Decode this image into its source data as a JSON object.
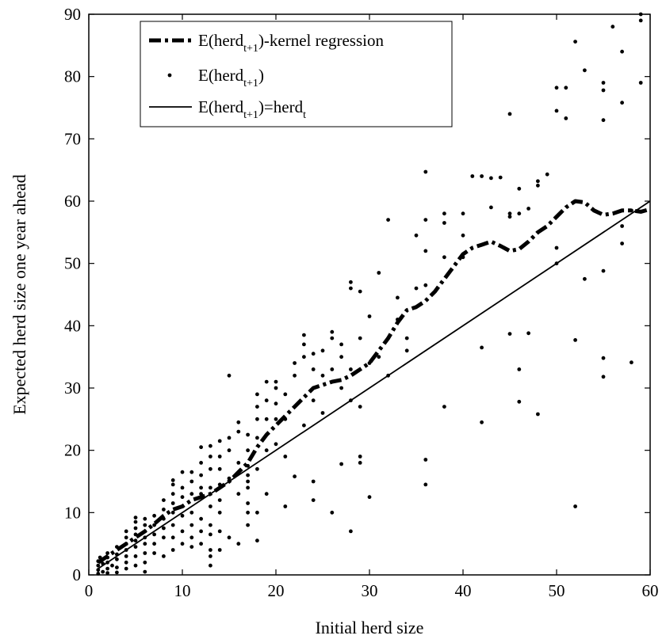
{
  "chart_data": {
    "type": "scatter",
    "xlabel": "Initial herd size",
    "ylabel": "Expected herd size one year ahead",
    "xlim": [
      0,
      60
    ],
    "ylim": [
      0,
      90
    ],
    "xticks": [
      0,
      10,
      20,
      30,
      40,
      50,
      60
    ],
    "yticks": [
      0,
      10,
      20,
      30,
      40,
      50,
      60,
      70,
      80,
      90
    ],
    "grid": false,
    "legend_position": "top-left",
    "legend": [
      {
        "base": "E(herd",
        "sub": "t+1",
        "tail": ")-kernel regression",
        "tail_sub": "",
        "style": "dash-dot"
      },
      {
        "base": "E(herd",
        "sub": "t+1",
        "tail": ")",
        "tail_sub": "",
        "style": "dot"
      },
      {
        "base": "E(herd",
        "sub": "t+1",
        "tail": ")=herd",
        "tail_sub": "t",
        "style": "solid"
      }
    ],
    "series": [
      {
        "kind": "kernel",
        "points": [
          [
            1,
            2
          ],
          [
            2,
            3
          ],
          [
            3,
            4
          ],
          [
            4,
            5
          ],
          [
            5,
            6
          ],
          [
            6,
            7
          ],
          [
            7,
            8.2
          ],
          [
            8,
            9.5
          ],
          [
            9,
            10.5
          ],
          [
            10,
            11
          ],
          [
            11,
            12
          ],
          [
            12,
            12.5
          ],
          [
            13,
            13
          ],
          [
            14,
            14
          ],
          [
            15,
            15
          ],
          [
            16,
            16.5
          ],
          [
            17,
            18
          ],
          [
            18,
            20.5
          ],
          [
            19,
            22.5
          ],
          [
            20,
            24
          ],
          [
            21,
            25.5
          ],
          [
            22,
            27
          ],
          [
            23,
            28.5
          ],
          [
            24,
            30
          ],
          [
            25,
            30.5
          ],
          [
            26,
            31
          ],
          [
            27,
            31.3
          ],
          [
            28,
            32
          ],
          [
            29,
            33
          ],
          [
            30,
            34
          ],
          [
            31,
            36
          ],
          [
            32,
            38
          ],
          [
            33,
            40.5
          ],
          [
            34,
            42.5
          ],
          [
            35,
            43
          ],
          [
            36,
            44
          ],
          [
            37,
            45.5
          ],
          [
            38,
            47.5
          ],
          [
            39,
            49.5
          ],
          [
            40,
            51.5
          ],
          [
            41,
            52.5
          ],
          [
            42,
            53
          ],
          [
            43,
            53.5
          ],
          [
            44,
            52.8
          ],
          [
            45,
            52
          ],
          [
            46,
            52.3
          ],
          [
            47,
            53.5
          ],
          [
            48,
            55
          ],
          [
            49,
            56
          ],
          [
            50,
            57.5
          ],
          [
            51,
            59
          ],
          [
            52,
            60
          ],
          [
            53,
            59.8
          ],
          [
            54,
            58.5
          ],
          [
            55,
            57.8
          ],
          [
            56,
            58
          ],
          [
            57,
            58.5
          ],
          [
            58,
            58.5
          ],
          [
            59,
            58.3
          ],
          [
            60,
            58.7
          ]
        ]
      },
      {
        "kind": "scatter",
        "points": [
          [
            1,
            0.2
          ],
          [
            1,
            0.8
          ],
          [
            1,
            1.5
          ],
          [
            1,
            2.2
          ],
          [
            1.2,
            2.8
          ],
          [
            1.5,
            0.5
          ],
          [
            1.5,
            1.8
          ],
          [
            2,
            0.3
          ],
          [
            2,
            1
          ],
          [
            2,
            2
          ],
          [
            2,
            2.8
          ],
          [
            2,
            3.5
          ],
          [
            2.5,
            1.5
          ],
          [
            3,
            0.4
          ],
          [
            3,
            1.2
          ],
          [
            3,
            2.5
          ],
          [
            3,
            3.3
          ],
          [
            3,
            4.5
          ],
          [
            4,
            1
          ],
          [
            4,
            2
          ],
          [
            4,
            3
          ],
          [
            4,
            4
          ],
          [
            4,
            5
          ],
          [
            4,
            6
          ],
          [
            4,
            7
          ],
          [
            5,
            1.5
          ],
          [
            5,
            3
          ],
          [
            5,
            4.5
          ],
          [
            5,
            5.5
          ],
          [
            5,
            6.5
          ],
          [
            5,
            7.5
          ],
          [
            5,
            8.5
          ],
          [
            5,
            9.2
          ],
          [
            6,
            0.5
          ],
          [
            6,
            2
          ],
          [
            6,
            3.5
          ],
          [
            6,
            5
          ],
          [
            6,
            6
          ],
          [
            6,
            7
          ],
          [
            6,
            8
          ],
          [
            6,
            9
          ],
          [
            7,
            3.5
          ],
          [
            7,
            5
          ],
          [
            7,
            6.5
          ],
          [
            7,
            8
          ],
          [
            7,
            9.5
          ],
          [
            8,
            3
          ],
          [
            8,
            6
          ],
          [
            8,
            7.5
          ],
          [
            8,
            9
          ],
          [
            8,
            10.5
          ],
          [
            8,
            12
          ],
          [
            9,
            4
          ],
          [
            9,
            6
          ],
          [
            9,
            8
          ],
          [
            9,
            10
          ],
          [
            9,
            11.5
          ],
          [
            9,
            13
          ],
          [
            9,
            14.5
          ],
          [
            9,
            15.2
          ],
          [
            10,
            5
          ],
          [
            10,
            7
          ],
          [
            10,
            9.5
          ],
          [
            10,
            11
          ],
          [
            10,
            12.5
          ],
          [
            10,
            14
          ],
          [
            10,
            16.5
          ],
          [
            11,
            4.5
          ],
          [
            11,
            6
          ],
          [
            11,
            8
          ],
          [
            11,
            10
          ],
          [
            11,
            13
          ],
          [
            11,
            15
          ],
          [
            11,
            16.5
          ],
          [
            12,
            5
          ],
          [
            12,
            7
          ],
          [
            12,
            9
          ],
          [
            12,
            13
          ],
          [
            12,
            14
          ],
          [
            12,
            16
          ],
          [
            12,
            18
          ],
          [
            12,
            20.5
          ],
          [
            13,
            1.5
          ],
          [
            13,
            3
          ],
          [
            13,
            4
          ],
          [
            13,
            6.5
          ],
          [
            13,
            8
          ],
          [
            13,
            11
          ],
          [
            13,
            14
          ],
          [
            13,
            17
          ],
          [
            13,
            19
          ],
          [
            13,
            20.7
          ],
          [
            14,
            4
          ],
          [
            14,
            7
          ],
          [
            14,
            10
          ],
          [
            14,
            12
          ],
          [
            14,
            14.5
          ],
          [
            14,
            17
          ],
          [
            14,
            19
          ],
          [
            14,
            21.5
          ],
          [
            15,
            6
          ],
          [
            15,
            15.5
          ],
          [
            15,
            20
          ],
          [
            15,
            22
          ],
          [
            15,
            32
          ],
          [
            16,
            5
          ],
          [
            16,
            13
          ],
          [
            16,
            18
          ],
          [
            16,
            23
          ],
          [
            16,
            24.5
          ],
          [
            17,
            8
          ],
          [
            17,
            10
          ],
          [
            17,
            11.5
          ],
          [
            17,
            14
          ],
          [
            17,
            15
          ],
          [
            17,
            16
          ],
          [
            17,
            17.5
          ],
          [
            17,
            20
          ],
          [
            17,
            22.5
          ],
          [
            18,
            5.5
          ],
          [
            18,
            10
          ],
          [
            18,
            17
          ],
          [
            18,
            22
          ],
          [
            18,
            25
          ],
          [
            18,
            27
          ],
          [
            18,
            29
          ],
          [
            19,
            13
          ],
          [
            19,
            20
          ],
          [
            19,
            25
          ],
          [
            19,
            28
          ],
          [
            19,
            31
          ],
          [
            20,
            21
          ],
          [
            20,
            25
          ],
          [
            20,
            27.5
          ],
          [
            20,
            30
          ],
          [
            20,
            31
          ],
          [
            21,
            11
          ],
          [
            21,
            19
          ],
          [
            21,
            25
          ],
          [
            21,
            29
          ],
          [
            22,
            15.8
          ],
          [
            22,
            32
          ],
          [
            22,
            34
          ],
          [
            23,
            24
          ],
          [
            23,
            35
          ],
          [
            23,
            37
          ],
          [
            23,
            38.5
          ],
          [
            24,
            12
          ],
          [
            24,
            15
          ],
          [
            24,
            28
          ],
          [
            24,
            33
          ],
          [
            24,
            35.5
          ],
          [
            25,
            26
          ],
          [
            25,
            32
          ],
          [
            25,
            36
          ],
          [
            26,
            10
          ],
          [
            26,
            33
          ],
          [
            26,
            38
          ],
          [
            26,
            39
          ],
          [
            27,
            17.8
          ],
          [
            27,
            30
          ],
          [
            27,
            35
          ],
          [
            27,
            37
          ],
          [
            28,
            7
          ],
          [
            28,
            28
          ],
          [
            28,
            33
          ],
          [
            28,
            46
          ],
          [
            28,
            47
          ],
          [
            29,
            18
          ],
          [
            29,
            19
          ],
          [
            29,
            27
          ],
          [
            29,
            38
          ],
          [
            29,
            45.5
          ],
          [
            30,
            12.5
          ],
          [
            30,
            34
          ],
          [
            30,
            41.5
          ],
          [
            31,
            35
          ],
          [
            31,
            48.5
          ],
          [
            32,
            32
          ],
          [
            32,
            38
          ],
          [
            32,
            57
          ],
          [
            33,
            44.5
          ],
          [
            33,
            41
          ],
          [
            34,
            36
          ],
          [
            34,
            38
          ],
          [
            35,
            46
          ],
          [
            35,
            54.5
          ],
          [
            36,
            14.5
          ],
          [
            36,
            18.5
          ],
          [
            36,
            46.5
          ],
          [
            36,
            52
          ],
          [
            36,
            57
          ],
          [
            36,
            64.7
          ],
          [
            38,
            27
          ],
          [
            38,
            51
          ],
          [
            38,
            56.5
          ],
          [
            38,
            58
          ],
          [
            40,
            54.5
          ],
          [
            40,
            58
          ],
          [
            40,
            51
          ],
          [
            41,
            64
          ],
          [
            42,
            24.5
          ],
          [
            42,
            36.5
          ],
          [
            42,
            64
          ],
          [
            43,
            59
          ],
          [
            43,
            63.7
          ],
          [
            44,
            63.8
          ],
          [
            45,
            38.7
          ],
          [
            45,
            57.5
          ],
          [
            45,
            58
          ],
          [
            45,
            74
          ],
          [
            46,
            27.8
          ],
          [
            46,
            33
          ],
          [
            46,
            58
          ],
          [
            46,
            62
          ],
          [
            47,
            38.8
          ],
          [
            47,
            58.8
          ],
          [
            48,
            25.8
          ],
          [
            48,
            62.5
          ],
          [
            48,
            63.2
          ],
          [
            49,
            64.3
          ],
          [
            50,
            50
          ],
          [
            50,
            52.5
          ],
          [
            50,
            74.5
          ],
          [
            50,
            78.2
          ],
          [
            51,
            73.3
          ],
          [
            51,
            78.2
          ],
          [
            52,
            11
          ],
          [
            52,
            37.7
          ],
          [
            52,
            85.6
          ],
          [
            53,
            47.5
          ],
          [
            53,
            81
          ],
          [
            55,
            31.8
          ],
          [
            55,
            34.8
          ],
          [
            55,
            48.8
          ],
          [
            55,
            73
          ],
          [
            55,
            77.8
          ],
          [
            55,
            79
          ],
          [
            56,
            88
          ],
          [
            57,
            53.2
          ],
          [
            57,
            56
          ],
          [
            57,
            75.8
          ],
          [
            57,
            84
          ],
          [
            58,
            34.1
          ],
          [
            58,
            58.5
          ],
          [
            59,
            79
          ],
          [
            59,
            89
          ],
          [
            59,
            90
          ]
        ]
      },
      {
        "kind": "identity",
        "points": [
          [
            1,
            1
          ],
          [
            60,
            60
          ]
        ]
      }
    ]
  }
}
